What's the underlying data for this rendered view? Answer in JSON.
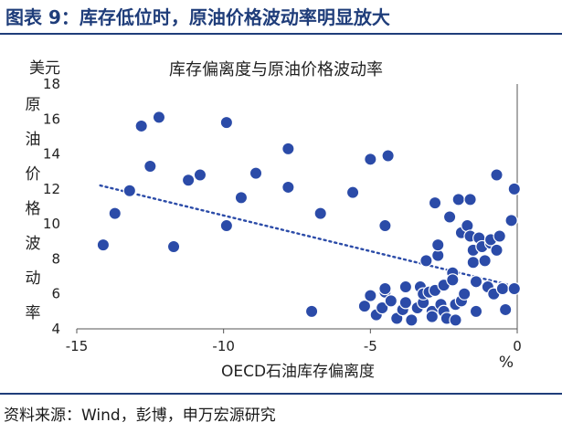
{
  "header": {
    "title": "图表 9：库存低位时，原油价格波动率明显放大"
  },
  "footer": {
    "source": "资料来源：Wind，彭博，申万宏源研究"
  },
  "colors": {
    "title": "#1f3d7a",
    "marker": "#2b4ba8",
    "marker_edge": "#ffffff",
    "trend": "#2b4ba8"
  },
  "chart_data": {
    "type": "scatter",
    "title": "库存偏离度与原油价格波动率",
    "xlabel": "OECD石油库存偏离度",
    "x_unit": "%",
    "ylabel": "原油价格波动率",
    "y_unit": "美元",
    "xlim": [
      -15,
      0
    ],
    "ylim": [
      4,
      18
    ],
    "x_ticks": [
      -15,
      -10,
      -5,
      0
    ],
    "y_ticks": [
      4,
      6,
      8,
      10,
      12,
      14,
      16,
      18
    ],
    "trendline": {
      "style": "dotted",
      "x": [
        -14.2,
        0
      ],
      "y": [
        12.2,
        6.4
      ]
    },
    "points": [
      {
        "x": -14.1,
        "y": 8.8
      },
      {
        "x": -13.7,
        "y": 10.6
      },
      {
        "x": -13.2,
        "y": 11.9
      },
      {
        "x": -12.8,
        "y": 15.6
      },
      {
        "x": -12.5,
        "y": 13.3
      },
      {
        "x": -12.2,
        "y": 16.1
      },
      {
        "x": -11.7,
        "y": 8.7
      },
      {
        "x": -11.2,
        "y": 12.5
      },
      {
        "x": -10.8,
        "y": 12.8
      },
      {
        "x": -9.9,
        "y": 15.8
      },
      {
        "x": -9.9,
        "y": 9.9
      },
      {
        "x": -9.4,
        "y": 11.5
      },
      {
        "x": -8.9,
        "y": 12.9
      },
      {
        "x": -7.8,
        "y": 14.3
      },
      {
        "x": -7.8,
        "y": 12.1
      },
      {
        "x": -6.7,
        "y": 10.6
      },
      {
        "x": -7.0,
        "y": 5.0
      },
      {
        "x": -5.6,
        "y": 11.8
      },
      {
        "x": -5.0,
        "y": 13.7
      },
      {
        "x": -4.5,
        "y": 9.9
      },
      {
        "x": -4.4,
        "y": 13.9
      },
      {
        "x": -5.2,
        "y": 5.3
      },
      {
        "x": -5.0,
        "y": 5.9
      },
      {
        "x": -4.8,
        "y": 4.8
      },
      {
        "x": -4.6,
        "y": 5.2
      },
      {
        "x": -4.5,
        "y": 6.1
      },
      {
        "x": -4.5,
        "y": 6.3
      },
      {
        "x": -4.3,
        "y": 5.6
      },
      {
        "x": -4.1,
        "y": 4.6
      },
      {
        "x": -3.9,
        "y": 5.1
      },
      {
        "x": -3.8,
        "y": 6.4
      },
      {
        "x": -3.8,
        "y": 5.5
      },
      {
        "x": -3.6,
        "y": 4.5
      },
      {
        "x": -3.4,
        "y": 5.2
      },
      {
        "x": -3.3,
        "y": 6.4
      },
      {
        "x": -3.2,
        "y": 5.5
      },
      {
        "x": -3.2,
        "y": 6.0
      },
      {
        "x": -3.1,
        "y": 7.9
      },
      {
        "x": -3.0,
        "y": 6.1
      },
      {
        "x": -2.9,
        "y": 5.0
      },
      {
        "x": -2.9,
        "y": 4.7
      },
      {
        "x": -2.8,
        "y": 11.2
      },
      {
        "x": -2.8,
        "y": 6.2
      },
      {
        "x": -2.7,
        "y": 8.2
      },
      {
        "x": -2.7,
        "y": 8.8
      },
      {
        "x": -2.6,
        "y": 5.4
      },
      {
        "x": -2.5,
        "y": 6.5
      },
      {
        "x": -2.5,
        "y": 5.0
      },
      {
        "x": -2.4,
        "y": 4.6
      },
      {
        "x": -2.3,
        "y": 10.4
      },
      {
        "x": -2.2,
        "y": 7.2
      },
      {
        "x": -2.2,
        "y": 6.8
      },
      {
        "x": -2.1,
        "y": 5.4
      },
      {
        "x": -2.1,
        "y": 4.5
      },
      {
        "x": -2.0,
        "y": 11.4
      },
      {
        "x": -1.9,
        "y": 9.5
      },
      {
        "x": -1.9,
        "y": 5.6
      },
      {
        "x": -1.8,
        "y": 6.0
      },
      {
        "x": -1.7,
        "y": 9.9
      },
      {
        "x": -1.6,
        "y": 11.4
      },
      {
        "x": -1.6,
        "y": 9.3
      },
      {
        "x": -1.5,
        "y": 8.5
      },
      {
        "x": -1.5,
        "y": 7.8
      },
      {
        "x": -1.4,
        "y": 6.7
      },
      {
        "x": -1.4,
        "y": 5.0
      },
      {
        "x": -1.3,
        "y": 9.2
      },
      {
        "x": -1.2,
        "y": 8.7
      },
      {
        "x": -1.1,
        "y": 7.9
      },
      {
        "x": -1.0,
        "y": 6.4
      },
      {
        "x": -0.9,
        "y": 8.9
      },
      {
        "x": -0.9,
        "y": 9.1
      },
      {
        "x": -0.8,
        "y": 6.0
      },
      {
        "x": -0.7,
        "y": 8.5
      },
      {
        "x": -0.7,
        "y": 12.8
      },
      {
        "x": -0.6,
        "y": 9.3
      },
      {
        "x": -0.5,
        "y": 6.3
      },
      {
        "x": -0.4,
        "y": 5.1
      },
      {
        "x": -0.2,
        "y": 10.2
      },
      {
        "x": -0.1,
        "y": 12.0
      },
      {
        "x": -0.1,
        "y": 6.3
      }
    ]
  }
}
